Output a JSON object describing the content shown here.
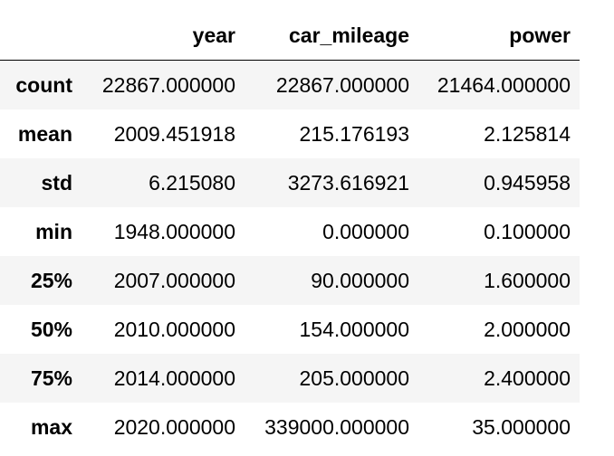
{
  "table": {
    "columns": [
      "",
      "year",
      "car_mileage",
      "power"
    ],
    "rows": [
      {
        "label": "count",
        "values": [
          "22867.000000",
          "22867.000000",
          "21464.000000"
        ]
      },
      {
        "label": "mean",
        "values": [
          "2009.451918",
          "215.176193",
          "2.125814"
        ]
      },
      {
        "label": "std",
        "values": [
          "6.215080",
          "3273.616921",
          "0.945958"
        ]
      },
      {
        "label": "min",
        "values": [
          "1948.000000",
          "0.000000",
          "0.100000"
        ]
      },
      {
        "label": "25%",
        "values": [
          "2007.000000",
          "90.000000",
          "1.600000"
        ]
      },
      {
        "label": "50%",
        "values": [
          "2010.000000",
          "154.000000",
          "2.000000"
        ]
      },
      {
        "label": "75%",
        "values": [
          "2014.000000",
          "205.000000",
          "2.400000"
        ]
      },
      {
        "label": "max",
        "values": [
          "2020.000000",
          "339000.000000",
          "35.000000"
        ]
      }
    ]
  },
  "colors": {
    "row_shade": "#f5f5f5",
    "text": "#000000",
    "header_rule": "#000000"
  }
}
